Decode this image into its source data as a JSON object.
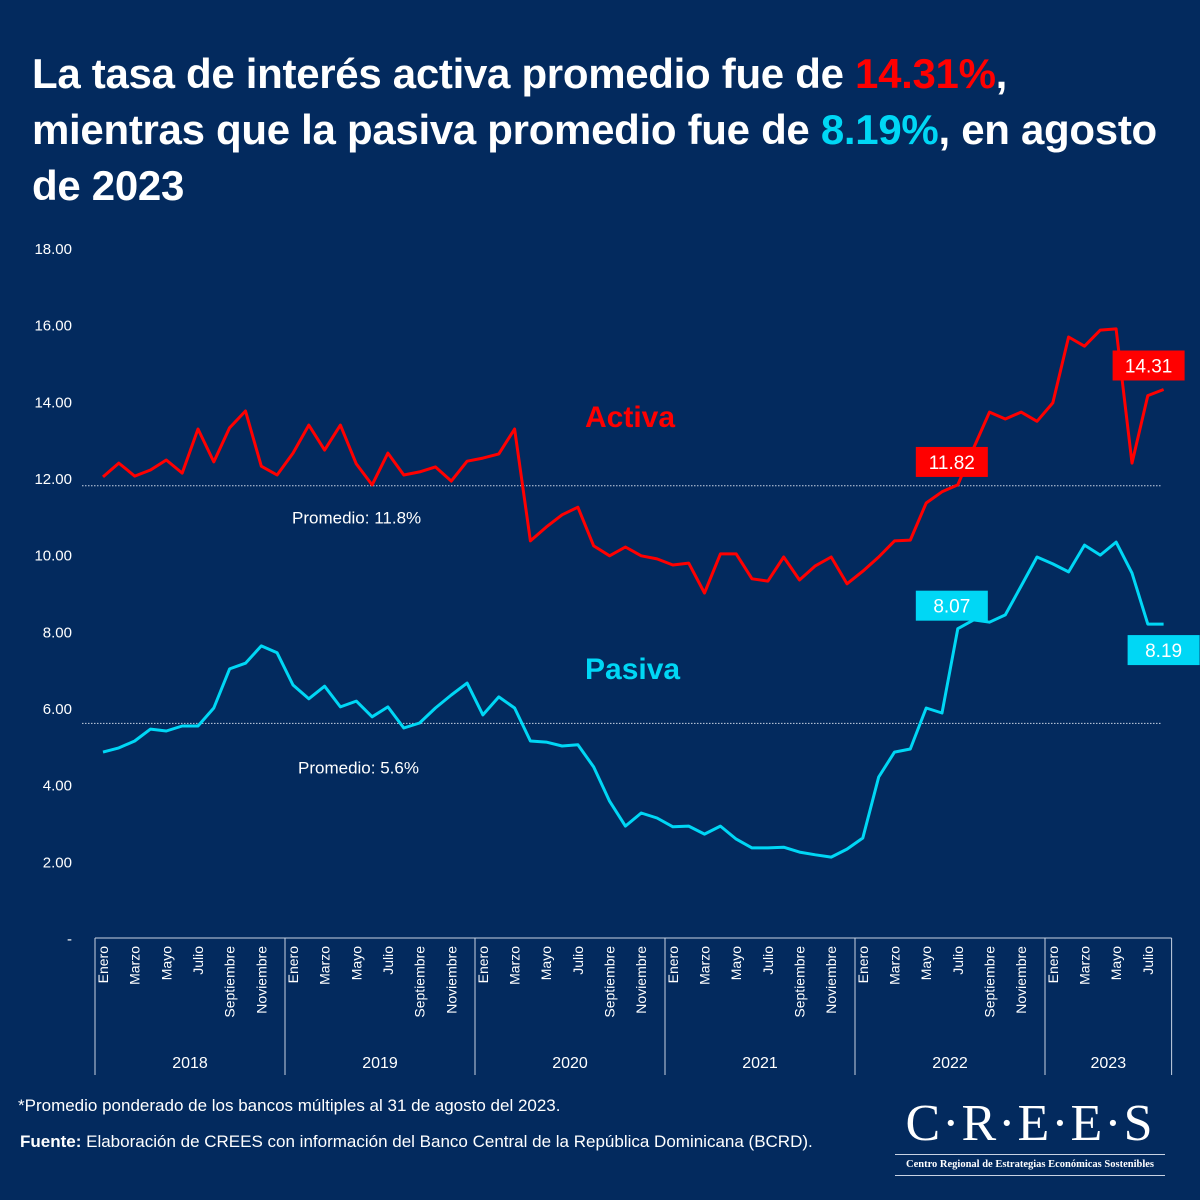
{
  "title": {
    "part1": "La tasa de interés activa promedio fue de ",
    "activa_value": "14.31%",
    "part2": ", mientras que la pasiva promedio fue de ",
    "pasiva_value": "8.19%",
    "part3": ", en agosto de 2023"
  },
  "colors": {
    "background": "#032a5e",
    "activa": "#ff0000",
    "pasiva": "#00d7f5",
    "text": "#ffffff"
  },
  "chart_data": {
    "type": "line",
    "title": "La tasa de interés activa promedio fue de 14.31%, mientras que la pasiva promedio fue de 8.19%, en agosto de 2023",
    "xlabel": "",
    "ylabel": "",
    "ylim": [
      0,
      18
    ],
    "yticks": [
      0,
      2,
      4,
      6,
      8,
      10,
      12,
      14,
      16,
      18
    ],
    "ytick_labels": [
      "-",
      "2.00",
      "4.00",
      "6.00",
      "8.00",
      "10.00",
      "12.00",
      "14.00",
      "16.00",
      "18.00"
    ],
    "grid": false,
    "years": [
      "2018",
      "2019",
      "2020",
      "2021",
      "2022",
      "2023"
    ],
    "month_tick_labels": [
      "Enero",
      "Marzo",
      "Mayo",
      "Julio",
      "Septiembre",
      "Noviembre"
    ],
    "month_tick_labels_2023": [
      "Enero",
      "Marzo",
      "Mayo",
      "Julio"
    ],
    "x_start": "Enero 2018",
    "x_end": "Agosto 2023",
    "series": [
      {
        "name": "Activa",
        "label": "Activa",
        "average": 11.8,
        "average_label": "Promedio: 11.8%",
        "values": [
          12.03,
          12.39,
          12.05,
          12.21,
          12.47,
          12.13,
          13.28,
          12.42,
          13.31,
          13.75,
          12.31,
          12.08,
          12.65,
          13.38,
          12.73,
          13.38,
          12.37,
          11.82,
          12.65,
          12.08,
          12.16,
          12.29,
          11.92,
          12.44,
          12.52,
          12.63,
          13.28,
          10.36,
          10.72,
          11.04,
          11.24,
          10.23,
          9.97,
          10.2,
          9.97,
          9.89,
          9.73,
          9.78,
          9.0,
          10.02,
          10.02,
          9.37,
          9.31,
          9.94,
          9.34,
          9.71,
          9.94,
          9.24,
          9.57,
          9.94,
          10.36,
          10.38,
          11.35,
          11.64,
          11.82,
          12.78,
          13.72,
          13.54,
          13.72,
          13.48,
          13.96,
          15.68,
          15.44,
          15.86,
          15.89,
          12.39,
          14.15,
          14.31
        ],
        "annotations": [
          {
            "month_index": 54,
            "text": "11.82",
            "position": "above-left"
          },
          {
            "month_index": 67,
            "text": "14.31",
            "position": "above"
          }
        ]
      },
      {
        "name": "Pasiva",
        "label": "Pasiva",
        "average": 5.6,
        "average_label": "Promedio: 5.6%",
        "values": [
          4.85,
          4.96,
          5.14,
          5.45,
          5.4,
          5.53,
          5.53,
          6.0,
          7.02,
          7.17,
          7.62,
          7.44,
          6.6,
          6.24,
          6.57,
          6.03,
          6.18,
          5.77,
          6.03,
          5.48,
          5.61,
          6.0,
          6.34,
          6.65,
          5.82,
          6.29,
          6.0,
          5.14,
          5.11,
          5.01,
          5.04,
          4.46,
          3.57,
          2.92,
          3.26,
          3.13,
          2.9,
          2.92,
          2.71,
          2.92,
          2.58,
          2.35,
          2.35,
          2.37,
          2.24,
          2.17,
          2.11,
          2.32,
          2.61,
          4.2,
          4.85,
          4.93,
          6.0,
          5.87,
          8.07,
          8.3,
          8.24,
          8.43,
          9.18,
          9.94,
          9.76,
          9.55,
          10.25,
          9.99,
          10.33,
          9.52,
          8.19,
          8.19
        ],
        "annotations": [
          {
            "month_index": 54,
            "text": "8.07",
            "position": "above-left"
          },
          {
            "month_index": 67,
            "text": "8.19",
            "position": "below"
          }
        ]
      }
    ]
  },
  "footer": {
    "footnote": "*Promedio ponderado de los bancos múltiples al 31 de agosto del 2023.",
    "source_label": "Fuente:",
    "source_text": " Elaboración de CREES con información del Banco Central de la República Dominicana (BCRD)."
  },
  "logo": {
    "main": "C·R·E·E·S",
    "subtitle": "Centro Regional de Estrategias Económicas Sostenibles"
  }
}
